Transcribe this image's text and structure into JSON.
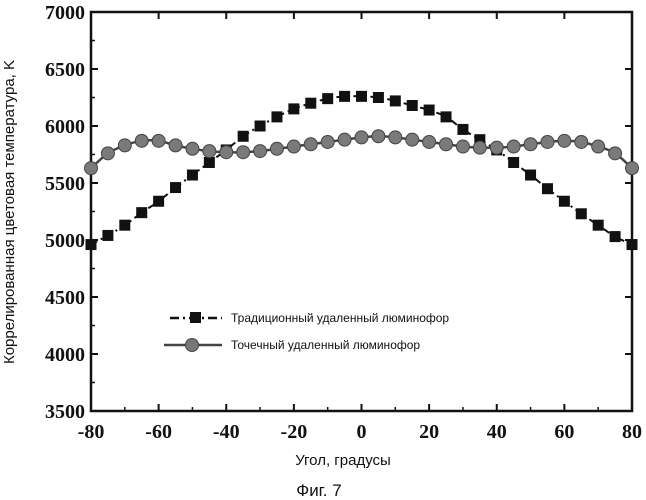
{
  "chart_data": {
    "type": "line",
    "ylabel": "Коррелированная цветовая температура, K",
    "xlabel": "Угол, градусы",
    "caption": "Фиг. 7",
    "xlim": [
      -80,
      80
    ],
    "ylim": [
      3500,
      7000
    ],
    "xticks": [
      -80,
      -60,
      -40,
      -20,
      0,
      20,
      40,
      60,
      80
    ],
    "yticks": [
      3500,
      4000,
      4500,
      5000,
      5500,
      6000,
      6500,
      7000
    ],
    "legend_position": "center-left",
    "series": [
      {
        "name": "Традиционный удаленный люминофор",
        "marker": "square",
        "line_style": "dash-dot",
        "x": [
          -80,
          -75,
          -70,
          -65,
          -60,
          -55,
          -50,
          -45,
          -40,
          -35,
          -30,
          -25,
          -20,
          -15,
          -10,
          -5,
          0,
          5,
          10,
          15,
          20,
          25,
          30,
          35,
          40,
          45,
          50,
          55,
          60,
          65,
          70,
          75,
          80
        ],
        "y": [
          4960,
          5040,
          5130,
          5240,
          5340,
          5460,
          5570,
          5680,
          5790,
          5910,
          6000,
          6080,
          6150,
          6200,
          6240,
          6260,
          6260,
          6250,
          6220,
          6180,
          6140,
          6080,
          5970,
          5880,
          5790,
          5680,
          5570,
          5450,
          5340,
          5230,
          5130,
          5030,
          4960
        ]
      },
      {
        "name": "Точечный удаленный люминофор",
        "marker": "circle",
        "line_style": "solid",
        "x": [
          -80,
          -75,
          -70,
          -65,
          -60,
          -55,
          -50,
          -45,
          -40,
          -35,
          -30,
          -25,
          -20,
          -15,
          -10,
          -5,
          0,
          5,
          10,
          15,
          20,
          25,
          30,
          35,
          40,
          45,
          50,
          55,
          60,
          65,
          70,
          75,
          80
        ],
        "y": [
          5630,
          5760,
          5830,
          5870,
          5870,
          5830,
          5800,
          5780,
          5770,
          5770,
          5780,
          5800,
          5820,
          5840,
          5860,
          5880,
          5900,
          5910,
          5900,
          5880,
          5860,
          5840,
          5820,
          5810,
          5810,
          5820,
          5840,
          5860,
          5870,
          5860,
          5820,
          5760,
          5630
        ]
      }
    ]
  }
}
